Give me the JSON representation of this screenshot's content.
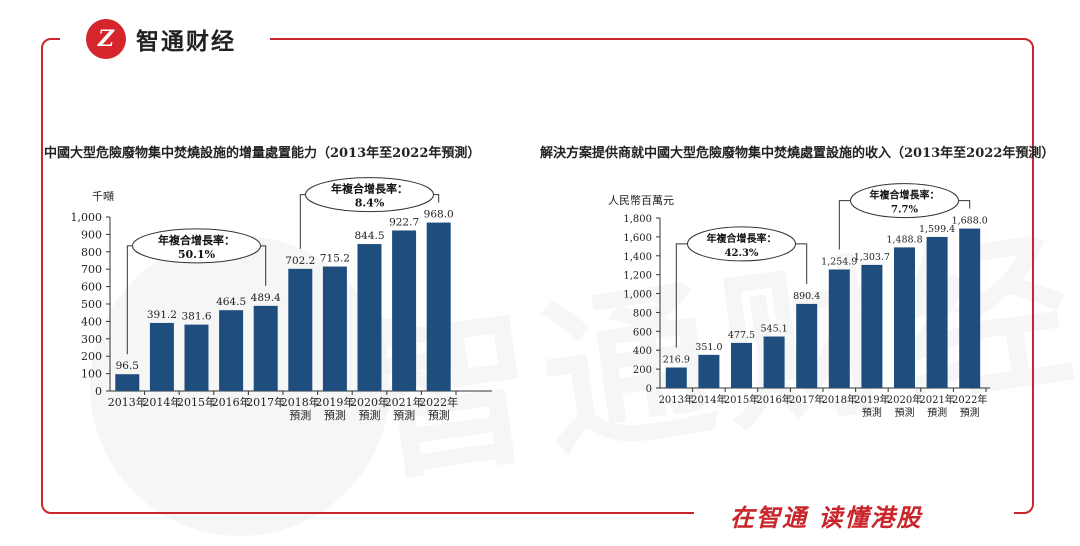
{
  "brand": {
    "logo_name": "zhitong-logo-icon",
    "logo_text": "智通财经",
    "slogan": "在智通  读懂港股",
    "accent": "#c8262b"
  },
  "chart_data": [
    {
      "type": "bar",
      "title": "中國大型危險廢物集中焚燒設施的增量處置能力（2013年至2022年預測）",
      "ylabel": "千噸",
      "categories": [
        [
          "2013年"
        ],
        [
          "2014年"
        ],
        [
          "2015年"
        ],
        [
          "2016年"
        ],
        [
          "2017年"
        ],
        [
          "2018年",
          "預測"
        ],
        [
          "2019年",
          "預測"
        ],
        [
          "2020年",
          "預測"
        ],
        [
          "2021年",
          "預測"
        ],
        [
          "2022年",
          "預測"
        ]
      ],
      "values": [
        96.5,
        391.2,
        381.6,
        464.5,
        489.4,
        702.2,
        715.2,
        844.5,
        922.7,
        968.0
      ],
      "value_labels": [
        "96.5",
        "391.2",
        "381.6",
        "464.5",
        "489.4",
        "702.2",
        "715.2",
        "844.5",
        "922.7",
        "968.0"
      ],
      "ylim": [
        0,
        1000
      ],
      "yticks": [
        "0",
        "100",
        "200",
        "300",
        "400",
        "500",
        "600",
        "700",
        "800",
        "900",
        "1,000"
      ],
      "bar_color": "#1f4e7e",
      "annotations": [
        {
          "label": "年複合增長率：",
          "value": "50.1%",
          "from": 0,
          "to": 4
        },
        {
          "label": "年複合增長率：",
          "value": "8.4%",
          "from": 5,
          "to": 9
        }
      ]
    },
    {
      "type": "bar",
      "title": "解決方案提供商就中國大型危險廢物集中焚燒處置設施的收入（2013年至2022年預測）",
      "ylabel": "人民幣百萬元",
      "categories": [
        [
          "2013年"
        ],
        [
          "2014年"
        ],
        [
          "2015年"
        ],
        [
          "2016年"
        ],
        [
          "2017年"
        ],
        [
          "2018年"
        ],
        [
          "2019年",
          "預測"
        ],
        [
          "2020年",
          "預測"
        ],
        [
          "2021年",
          "預測"
        ],
        [
          "2022年",
          "預測"
        ]
      ],
      "values": [
        216.9,
        351.0,
        477.5,
        545.1,
        890.4,
        1254.9,
        1303.7,
        1488.8,
        1599.4,
        1688.0
      ],
      "value_labels": [
        "216.9",
        "351.0",
        "477.5",
        "545.1",
        "890.4",
        "1,254.9",
        "1,303.7",
        "1,488.8",
        "1,599.4",
        "1,688.0"
      ],
      "ylim": [
        0,
        1800
      ],
      "yticks": [
        "0",
        "200",
        "400",
        "600",
        "800",
        "1,000",
        "1,200",
        "1,400",
        "1,600",
        "1,800"
      ],
      "bar_color": "#1f4e7e",
      "annotations": [
        {
          "label": "年複合增長率：",
          "value": "42.3%",
          "from": 0,
          "to": 4
        },
        {
          "label": "年複合增長率：",
          "value": "7.7%",
          "from": 5,
          "to": 9
        }
      ]
    }
  ]
}
